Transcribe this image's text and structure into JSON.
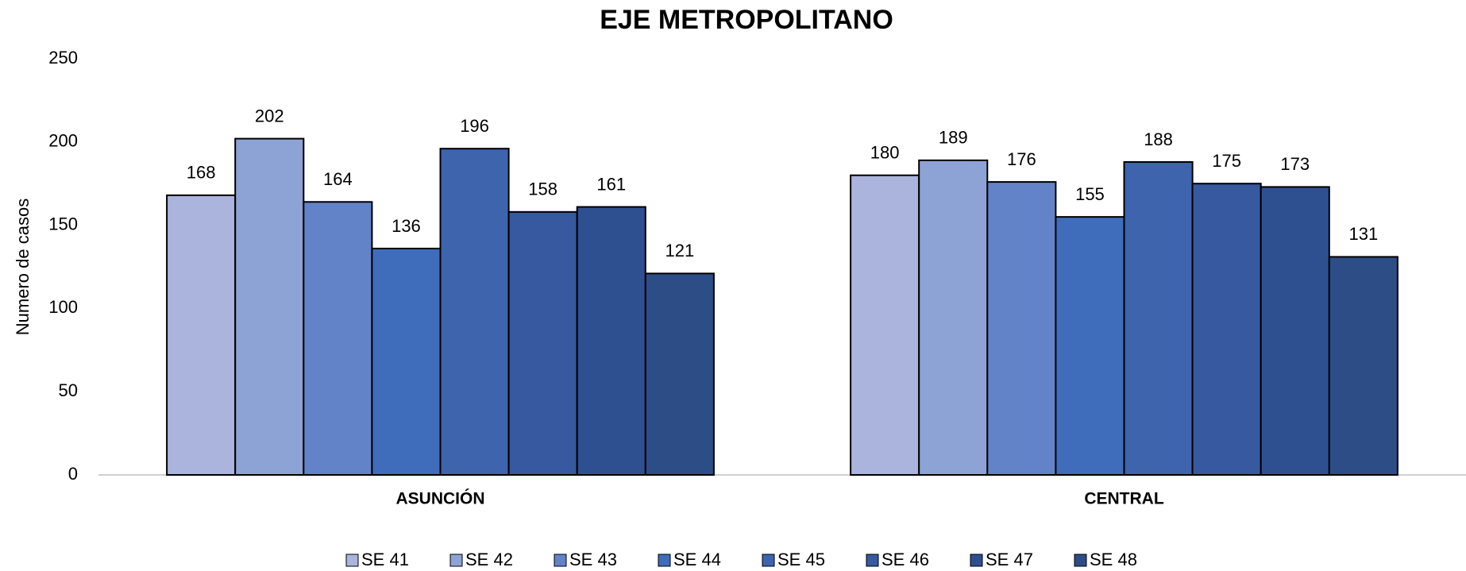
{
  "chart_data": {
    "type": "bar",
    "title": "EJE METROPOLITANO",
    "y_label": "Numero de casos",
    "categories": [
      "ASUNCIÓN",
      "CENTRAL"
    ],
    "series": [
      {
        "name": "SE 41",
        "color": "#aab4dc",
        "values": [
          168,
          180
        ]
      },
      {
        "name": "SE 42",
        "color": "#8ea3d5",
        "values": [
          202,
          189
        ]
      },
      {
        "name": "SE 43",
        "color": "#6383c8",
        "values": [
          164,
          176
        ]
      },
      {
        "name": "SE 44",
        "color": "#3f6dbb",
        "values": [
          136,
          155
        ]
      },
      {
        "name": "SE 45",
        "color": "#3d64ad",
        "values": [
          196,
          188
        ]
      },
      {
        "name": "SE 46",
        "color": "#3659a0",
        "values": [
          158,
          175
        ]
      },
      {
        "name": "SE 47",
        "color": "#2f5090",
        "values": [
          161,
          173
        ]
      },
      {
        "name": "SE 48",
        "color": "#2d4d87",
        "values": [
          121,
          131
        ]
      }
    ],
    "ylim": [
      0,
      250
    ],
    "yticks": [
      0,
      50,
      100,
      150,
      200,
      250
    ],
    "grid": false,
    "legend": "bottom"
  }
}
